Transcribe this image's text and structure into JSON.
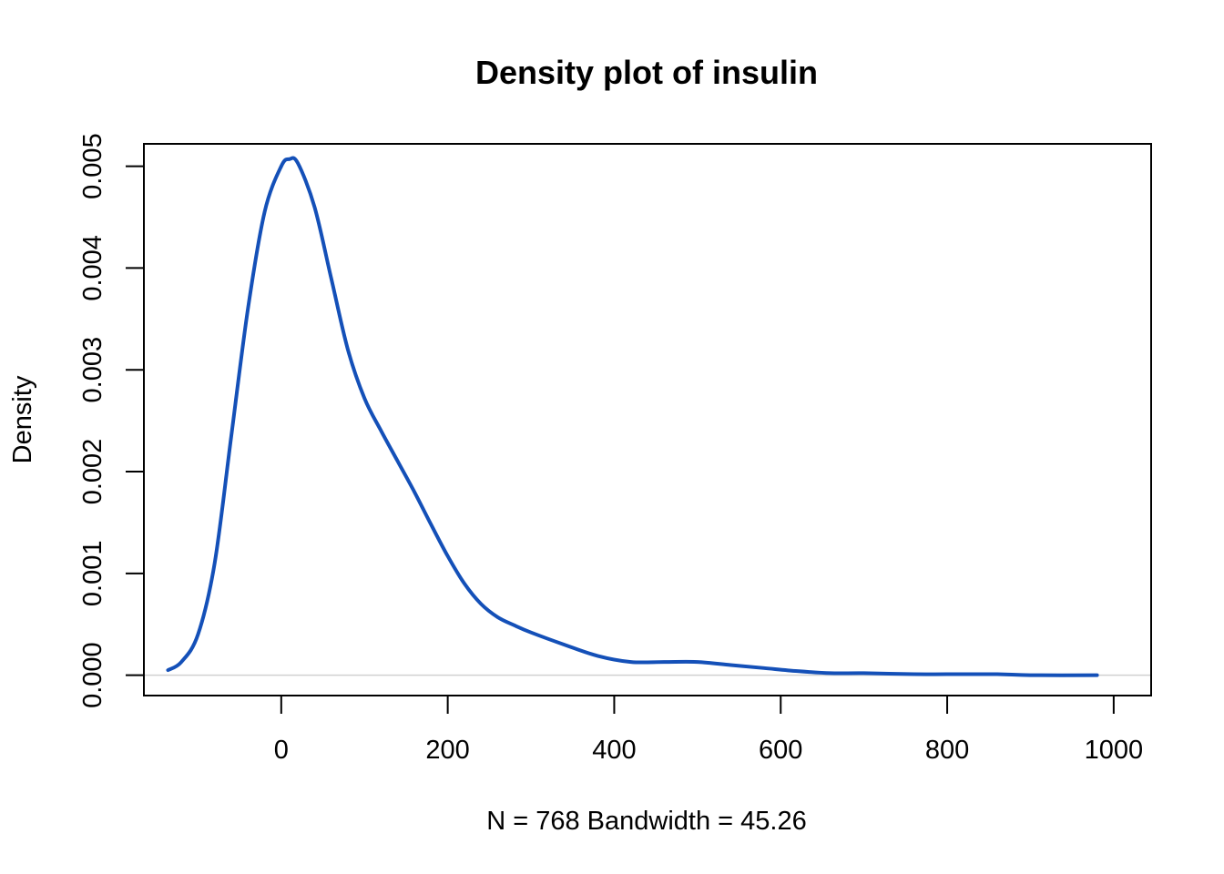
{
  "chart_data": {
    "type": "line",
    "title": "Density plot of insulin",
    "xlabel": "N = 768   Bandwidth = 45.26",
    "ylabel": "Density",
    "xlim": [
      -165,
      1045
    ],
    "ylim": [
      -0.0002,
      0.00522
    ],
    "x_ticks": [
      0,
      200,
      400,
      600,
      800,
      1000
    ],
    "x_tick_labels": [
      "0",
      "200",
      "400",
      "600",
      "800",
      "1000"
    ],
    "y_ticks": [
      0,
      0.001,
      0.002,
      0.003,
      0.004,
      0.005
    ],
    "y_tick_labels": [
      "0.000",
      "0.001",
      "0.002",
      "0.003",
      "0.004",
      "0.005"
    ],
    "baseline": 0,
    "grid": false,
    "legend": "none",
    "series": [
      {
        "color": "#1450b8",
        "x": [
          -136,
          -120,
          -100,
          -80,
          -60,
          -40,
          -20,
          0,
          10,
          20,
          40,
          60,
          80,
          100,
          120,
          140,
          160,
          180,
          200,
          220,
          240,
          260,
          280,
          300,
          340,
          380,
          420,
          460,
          500,
          540,
          580,
          620,
          660,
          700,
          760,
          800,
          860,
          900,
          980
        ],
        "y": [
          5e-05,
          0.00013,
          0.0004,
          0.0011,
          0.00235,
          0.0036,
          0.00455,
          0.005,
          0.00507,
          0.00503,
          0.0046,
          0.0039,
          0.0032,
          0.00272,
          0.0024,
          0.0021,
          0.0018,
          0.00148,
          0.00117,
          0.0009,
          0.0007,
          0.00057,
          0.00049,
          0.00042,
          0.0003,
          0.00019,
          0.00013,
          0.00013,
          0.00013,
          0.0001,
          7e-05,
          4e-05,
          2e-05,
          2e-05,
          1e-05,
          1e-05,
          1e-05,
          0.0,
          0.0
        ]
      }
    ]
  }
}
